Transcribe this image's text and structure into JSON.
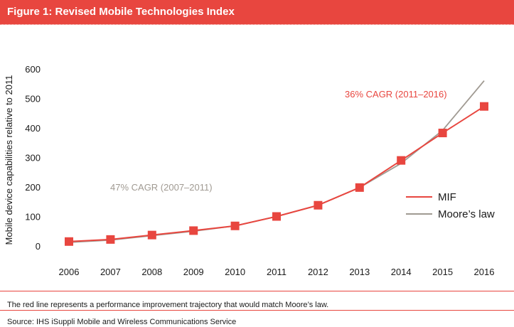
{
  "figure": {
    "title": "Figure 1: Revised Mobile Technologies Index",
    "footnote": "The red line represents a performance improvement trajectory that would match Moore’s law.",
    "source": "Source: IHS iSuppli Mobile and Wireless Communications Service"
  },
  "colors": {
    "accent": "#e8463f",
    "moore": "#a09a92",
    "annotation_gray": "#a09a92"
  },
  "chart_data": {
    "type": "line",
    "x": [
      "2006",
      "2007",
      "2008",
      "2009",
      "2010",
      "2011",
      "2012",
      "2013",
      "2014",
      "2015",
      "2016"
    ],
    "series": [
      {
        "name": "MIF",
        "values": [
          15,
          22,
          37,
          52,
          68,
          100,
          138,
          198,
          290,
          383,
          473
        ],
        "color": "#e8463f",
        "marker": "square"
      },
      {
        "name": "Moore’s law",
        "values": [
          12,
          20,
          35,
          50,
          68,
          100,
          138,
          198,
          280,
          392,
          560
        ],
        "color": "#a09a92",
        "marker": "none"
      }
    ],
    "ylabel": "Mobile device capabilities relative to 2011",
    "yticks": [
      0,
      100,
      200,
      300,
      400,
      500,
      600
    ],
    "ylim": [
      0,
      600
    ],
    "legend_position": "right",
    "annotations": [
      {
        "text": "47% CAGR (2007–2011)",
        "color": "#a09a92"
      },
      {
        "text": "36% CAGR (2011–2016)",
        "color": "#e8463f"
      }
    ]
  }
}
